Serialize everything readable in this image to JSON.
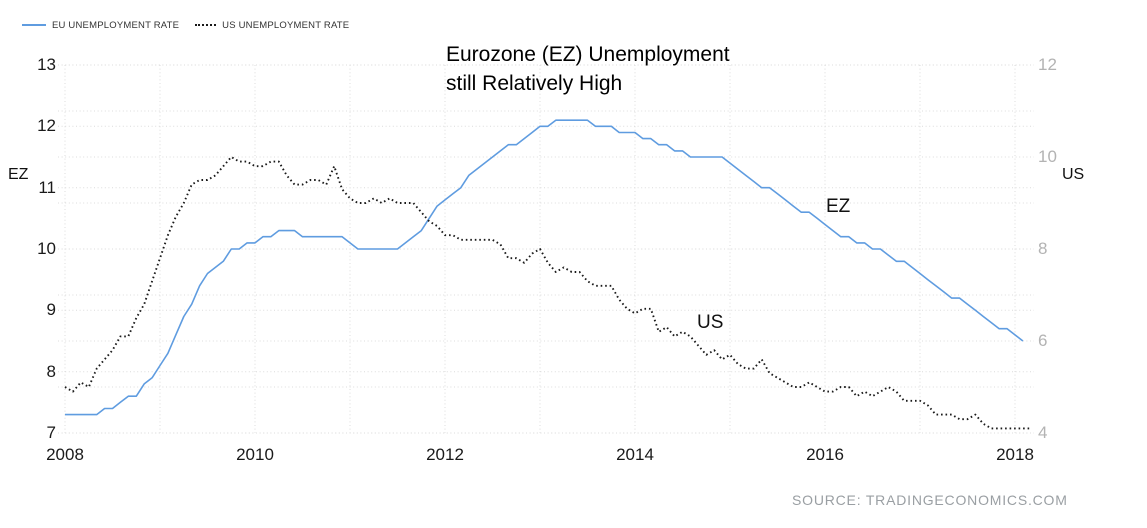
{
  "legend": [
    {
      "label": "EU UNEMPLOYMENT RATE",
      "style": "solid",
      "color": "#5f9ce0"
    },
    {
      "label": "US UNEMPLOYMENT RATE",
      "style": "dotted",
      "color": "#1a1a1a"
    }
  ],
  "title": {
    "line1": "Eurozone (EZ) Unemployment",
    "line2": "still Relatively High"
  },
  "axis_labels": {
    "left": "EZ",
    "right": "US"
  },
  "annotations": {
    "ez": "EZ",
    "us": "US"
  },
  "source": "SOURCE: TRADINGECONOMICS.COM",
  "colors": {
    "eu_line": "#5f9ce0",
    "us_line": "#1a1a1a",
    "grid": "#dcdcdc",
    "right_axis_text": "#b3b3b3",
    "left_axis_text": "#1a1a1a",
    "source_text": "#9a9fa3"
  },
  "chart_data": {
    "type": "line",
    "title": "Eurozone (EZ) Unemployment still Relatively High",
    "frequency": "monthly",
    "x_start_year": 2008,
    "x_start_month": 1,
    "x_ticks": [
      2008,
      2010,
      2012,
      2014,
      2016,
      2018
    ],
    "x_grid_years": [
      2008,
      2009,
      2010,
      2011,
      2012,
      2013,
      2014,
      2015,
      2016,
      2017,
      2018
    ],
    "grid": true,
    "legend_position": "top-left",
    "left_axis": {
      "label": "EZ",
      "min": 7,
      "max": 13,
      "ticks": [
        13,
        12,
        11,
        10,
        9,
        8,
        7
      ],
      "grid_ticks": [
        13,
        12,
        11,
        10,
        9,
        8,
        7
      ]
    },
    "right_axis": {
      "label": "US",
      "min": 4,
      "max": 12,
      "ticks": [
        12,
        10,
        8,
        6,
        4
      ],
      "grid_ticks": [
        12,
        11,
        10,
        9,
        8,
        7,
        6,
        5,
        4
      ]
    },
    "series": [
      {
        "name": "EU UNEMPLOYMENT RATE",
        "axis": "left",
        "style": "solid",
        "color": "#5f9ce0",
        "values": [
          7.3,
          7.3,
          7.3,
          7.3,
          7.3,
          7.4,
          7.4,
          7.5,
          7.6,
          7.6,
          7.8,
          7.9,
          8.1,
          8.3,
          8.6,
          8.9,
          9.1,
          9.4,
          9.6,
          9.7,
          9.8,
          10.0,
          10.0,
          10.1,
          10.1,
          10.2,
          10.2,
          10.3,
          10.3,
          10.3,
          10.2,
          10.2,
          10.2,
          10.2,
          10.2,
          10.2,
          10.1,
          10.0,
          10.0,
          10.0,
          10.0,
          10.0,
          10.0,
          10.1,
          10.2,
          10.3,
          10.5,
          10.7,
          10.8,
          10.9,
          11.0,
          11.2,
          11.3,
          11.4,
          11.5,
          11.6,
          11.7,
          11.7,
          11.8,
          11.9,
          12.0,
          12.0,
          12.1,
          12.1,
          12.1,
          12.1,
          12.1,
          12.0,
          12.0,
          12.0,
          11.9,
          11.9,
          11.9,
          11.8,
          11.8,
          11.7,
          11.7,
          11.6,
          11.6,
          11.5,
          11.5,
          11.5,
          11.5,
          11.5,
          11.4,
          11.3,
          11.2,
          11.1,
          11.0,
          11.0,
          10.9,
          10.8,
          10.7,
          10.6,
          10.6,
          10.5,
          10.4,
          10.3,
          10.2,
          10.2,
          10.1,
          10.1,
          10.0,
          10.0,
          9.9,
          9.8,
          9.8,
          9.7,
          9.6,
          9.5,
          9.4,
          9.3,
          9.2,
          9.2,
          9.1,
          9.0,
          8.9,
          8.8,
          8.7,
          8.7,
          8.6,
          8.5
        ]
      },
      {
        "name": "US UNEMPLOYMENT RATE",
        "axis": "right",
        "style": "dotted",
        "color": "#1a1a1a",
        "values": [
          5.0,
          4.9,
          5.1,
          5.0,
          5.4,
          5.6,
          5.8,
          6.1,
          6.1,
          6.5,
          6.8,
          7.3,
          7.8,
          8.3,
          8.7,
          9.0,
          9.4,
          9.5,
          9.5,
          9.6,
          9.8,
          10.0,
          9.9,
          9.9,
          9.8,
          9.8,
          9.9,
          9.9,
          9.6,
          9.4,
          9.4,
          9.5,
          9.5,
          9.4,
          9.8,
          9.3,
          9.1,
          9.0,
          9.0,
          9.1,
          9.0,
          9.1,
          9.0,
          9.0,
          9.0,
          8.8,
          8.6,
          8.5,
          8.3,
          8.3,
          8.2,
          8.2,
          8.2,
          8.2,
          8.2,
          8.1,
          7.8,
          7.8,
          7.7,
          7.9,
          8.0,
          7.7,
          7.5,
          7.6,
          7.5,
          7.5,
          7.3,
          7.2,
          7.2,
          7.2,
          6.9,
          6.7,
          6.6,
          6.7,
          6.7,
          6.2,
          6.3,
          6.1,
          6.2,
          6.1,
          5.9,
          5.7,
          5.8,
          5.6,
          5.7,
          5.5,
          5.4,
          5.4,
          5.6,
          5.3,
          5.2,
          5.1,
          5.0,
          5.0,
          5.1,
          5.0,
          4.9,
          4.9,
          5.0,
          5.0,
          4.8,
          4.9,
          4.8,
          4.9,
          5.0,
          4.9,
          4.7,
          4.7,
          4.7,
          4.6,
          4.4,
          4.4,
          4.4,
          4.3,
          4.3,
          4.4,
          4.2,
          4.1,
          4.1,
          4.1,
          4.1,
          4.1,
          4.1
        ]
      }
    ]
  }
}
